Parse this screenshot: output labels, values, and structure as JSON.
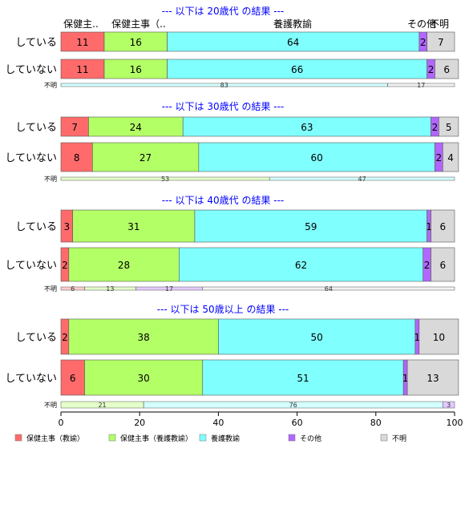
{
  "colors": {
    "保健主事（教諭）": "#ff6b6b",
    "保健主事（養護教諭）": "#b3ff66",
    "養護教諭": "#80ffff",
    "その他": "#b266ff",
    "不明": "#d9d9d9",
    "title": "#0000ff"
  },
  "chart_data": {
    "type": "bar",
    "orientation": "horizontal",
    "stacked": true,
    "categories_header": [
      "保健主..",
      "保健主事（..",
      "養護教諭",
      "その他",
      "不明"
    ],
    "legend": [
      "保健主事（教諭）",
      "保健主事（養護教諭）",
      "養護教諭",
      "その他",
      "不明"
    ],
    "legend_position": "bottom",
    "xlim": [
      0,
      100
    ],
    "xticks": [
      0,
      20,
      40,
      60,
      80,
      100
    ],
    "grid": false,
    "panels": [
      {
        "title": "--- 以下は 20歳代 の結果 ---",
        "rows": [
          {
            "label": "している",
            "values": [
              11,
              16,
              64,
              2,
              7
            ]
          },
          {
            "label": "していない",
            "values": [
              11,
              16,
              66,
              2,
              6
            ]
          }
        ],
        "unknown": {
          "label": "不明",
          "segments": [
            {
              "category": "養護教諭",
              "value": 83
            },
            {
              "category": "不明",
              "value": 17
            }
          ]
        }
      },
      {
        "title": "--- 以下は 30歳代 の結果 ---",
        "rows": [
          {
            "label": "している",
            "values": [
              7,
              24,
              63,
              2,
              5
            ]
          },
          {
            "label": "していない",
            "values": [
              8,
              27,
              60,
              2,
              4
            ]
          }
        ],
        "unknown": {
          "label": "不明",
          "segments": [
            {
              "category": "保健主事（養護教諭）",
              "value": 53
            },
            {
              "category": "養護教諭",
              "value": 47
            }
          ]
        }
      },
      {
        "title": "--- 以下は 40歳代 の結果 ---",
        "rows": [
          {
            "label": "している",
            "values": [
              3,
              31,
              59,
              1,
              6
            ]
          },
          {
            "label": "していない",
            "values": [
              2,
              28,
              62,
              2,
              6
            ]
          }
        ],
        "unknown": {
          "label": "不明",
          "segments": [
            {
              "category": "保健主事（教諭）",
              "value": 6
            },
            {
              "category": "保健主事（養護教諭）",
              "value": 13
            },
            {
              "category": "その他",
              "value": 17
            },
            {
              "category": "不明",
              "value": 64
            }
          ]
        }
      },
      {
        "title": "--- 以下は 50歳以上 の結果 ---",
        "rows": [
          {
            "label": "している",
            "values": [
              2,
              38,
              50,
              1,
              10
            ]
          },
          {
            "label": "していない",
            "values": [
              6,
              30,
              51,
              1,
              13
            ]
          }
        ],
        "unknown": {
          "label": "不明",
          "segments": [
            {
              "category": "保健主事（養護教諭）",
              "value": 21
            },
            {
              "category": "養護教諭",
              "value": 76
            },
            {
              "category": "その他",
              "value": 3
            }
          ]
        }
      }
    ]
  }
}
